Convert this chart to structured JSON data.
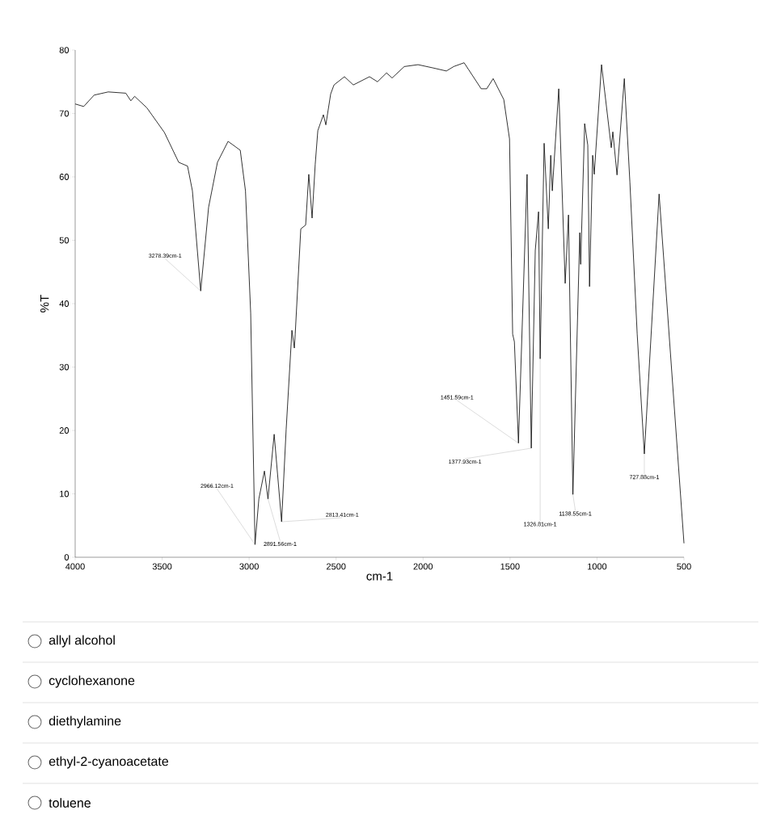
{
  "chart_data": {
    "type": "line",
    "xlabel": "cm-1",
    "ylabel": "%T",
    "xlim": [
      4000,
      500
    ],
    "ylim": [
      0,
      80
    ],
    "xticks": [
      4000,
      3500,
      3000,
      2500,
      2000,
      1500,
      1000,
      500
    ],
    "yticks": [
      0,
      10,
      20,
      30,
      40,
      50,
      60,
      70,
      80
    ],
    "grid": false,
    "series": [
      {
        "color": "#000000",
        "x": [
          4000,
          3951,
          3891,
          3810,
          3709,
          3680,
          3658,
          3588,
          3487,
          3405,
          3354,
          3326,
          3278.39,
          3233,
          3182,
          3121,
          3051,
          3021,
          2991,
          2966.12,
          2944,
          2912,
          2891.56,
          2856,
          2813.41,
          2787,
          2754,
          2740,
          2735,
          2703,
          2675,
          2657,
          2638,
          2620,
          2605,
          2573,
          2559,
          2531,
          2512,
          2452,
          2401,
          2308,
          2262,
          2210,
          2178,
          2108,
          2029,
          1945,
          1866,
          1824,
          1764,
          1666,
          1634,
          1597,
          1536,
          1503,
          1485,
          1475,
          1451.59,
          1402,
          1377.93,
          1355,
          1336,
          1326.81,
          1304,
          1280,
          1266,
          1257,
          1220,
          1183,
          1164,
          1138.55,
          1099,
          1094,
          1071,
          1053,
          1043,
          1025,
          1016,
          974,
          918,
          909,
          885,
          843,
          811,
          769,
          727.88,
          643,
          500
        ],
        "values": [
          71.5,
          71.1,
          72.9,
          73.4,
          73.2,
          72.0,
          72.7,
          70.9,
          67.0,
          62.3,
          61.7,
          57.8,
          42.0,
          55.2,
          62.3,
          65.6,
          64.2,
          57.8,
          38.5,
          2.0,
          9.2,
          13.6,
          9.2,
          19.4,
          5.6,
          20.2,
          35.8,
          33.0,
          35.2,
          51.8,
          52.4,
          60.4,
          53.5,
          62.0,
          67.3,
          69.8,
          68.2,
          73.1,
          74.5,
          75.8,
          74.5,
          75.8,
          75.0,
          76.4,
          75.6,
          77.4,
          77.7,
          77.2,
          76.7,
          77.4,
          78.0,
          73.9,
          73.9,
          75.5,
          72.2,
          66.0,
          35.2,
          34.0,
          18.0,
          60.4,
          17.2,
          48.4,
          54.5,
          31.3,
          65.3,
          51.8,
          63.4,
          57.8,
          73.9,
          43.2,
          54.0,
          9.9,
          51.2,
          46.2,
          68.4,
          65.0,
          42.7,
          63.4,
          60.4,
          77.7,
          64.6,
          67.1,
          60.3,
          75.5,
          59.2,
          35.2,
          16.3,
          57.3,
          2.2
        ]
      }
    ],
    "annotations": [
      {
        "text": "3278.39cm-1",
        "x": 3278.39,
        "y": 42.0
      },
      {
        "text": "2966.12cm-1",
        "x": 2966.12,
        "y": 2.0
      },
      {
        "text": "2891.56cm-1",
        "x": 2891.56,
        "y": 9.2
      },
      {
        "text": "2813.41cm-1",
        "x": 2813.41,
        "y": 5.6
      },
      {
        "text": "1451.59cm-1",
        "x": 1451.59,
        "y": 18.0
      },
      {
        "text": "1377.93cm-1",
        "x": 1377.93,
        "y": 17.2
      },
      {
        "text": "1326.81cm-1",
        "x": 1326.81,
        "y": 31.3
      },
      {
        "text": "1138.55cm-1",
        "x": 1138.55,
        "y": 9.9
      },
      {
        "text": "727.88cm-1",
        "x": 727.88,
        "y": 16.3
      },
      "allyl alcohol",
      "cyclohexanone",
      "diethylamine",
      "ethyl-2-cyanoacetate",
      "toluene"
    ]
  }
}
